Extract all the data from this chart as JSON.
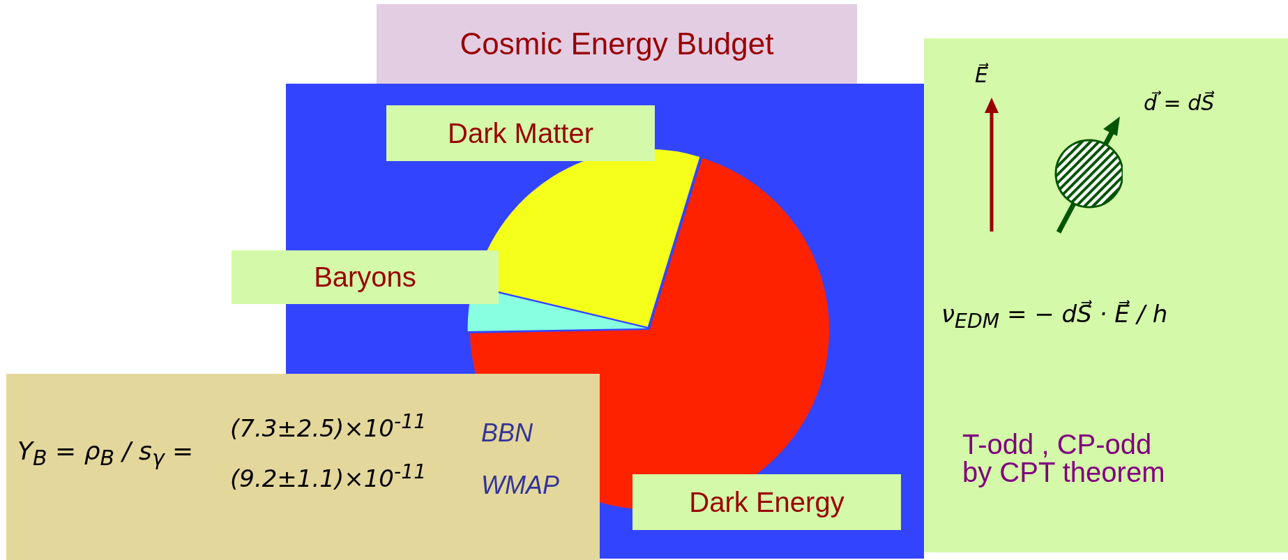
{
  "chart_data": {
    "type": "pie",
    "title": "Cosmic Energy Budget",
    "categories": [
      "Dark Energy",
      "Baryons",
      "Dark Matter"
    ],
    "values": [
      70,
      4,
      26
    ],
    "colors": [
      "#ff2200",
      "#88ffe0",
      "#f4ff1a"
    ],
    "annotations": [
      "E⃗",
      "d⃗ = dS⃗",
      "ν$_{EDM}$ = − dS⃗ · E⃗ / h",
      "T-odd , CP-odd",
      "by CPT theorem",
      "Y$_{B}$ = ρ$_{B}$ / s$_{γ}$ =",
      "(7.3±2.5)×10$^{-11}$",
      "BBN",
      "(9.2±1.1)×10$^{-11}$",
      "WMAP"
    ]
  }
}
